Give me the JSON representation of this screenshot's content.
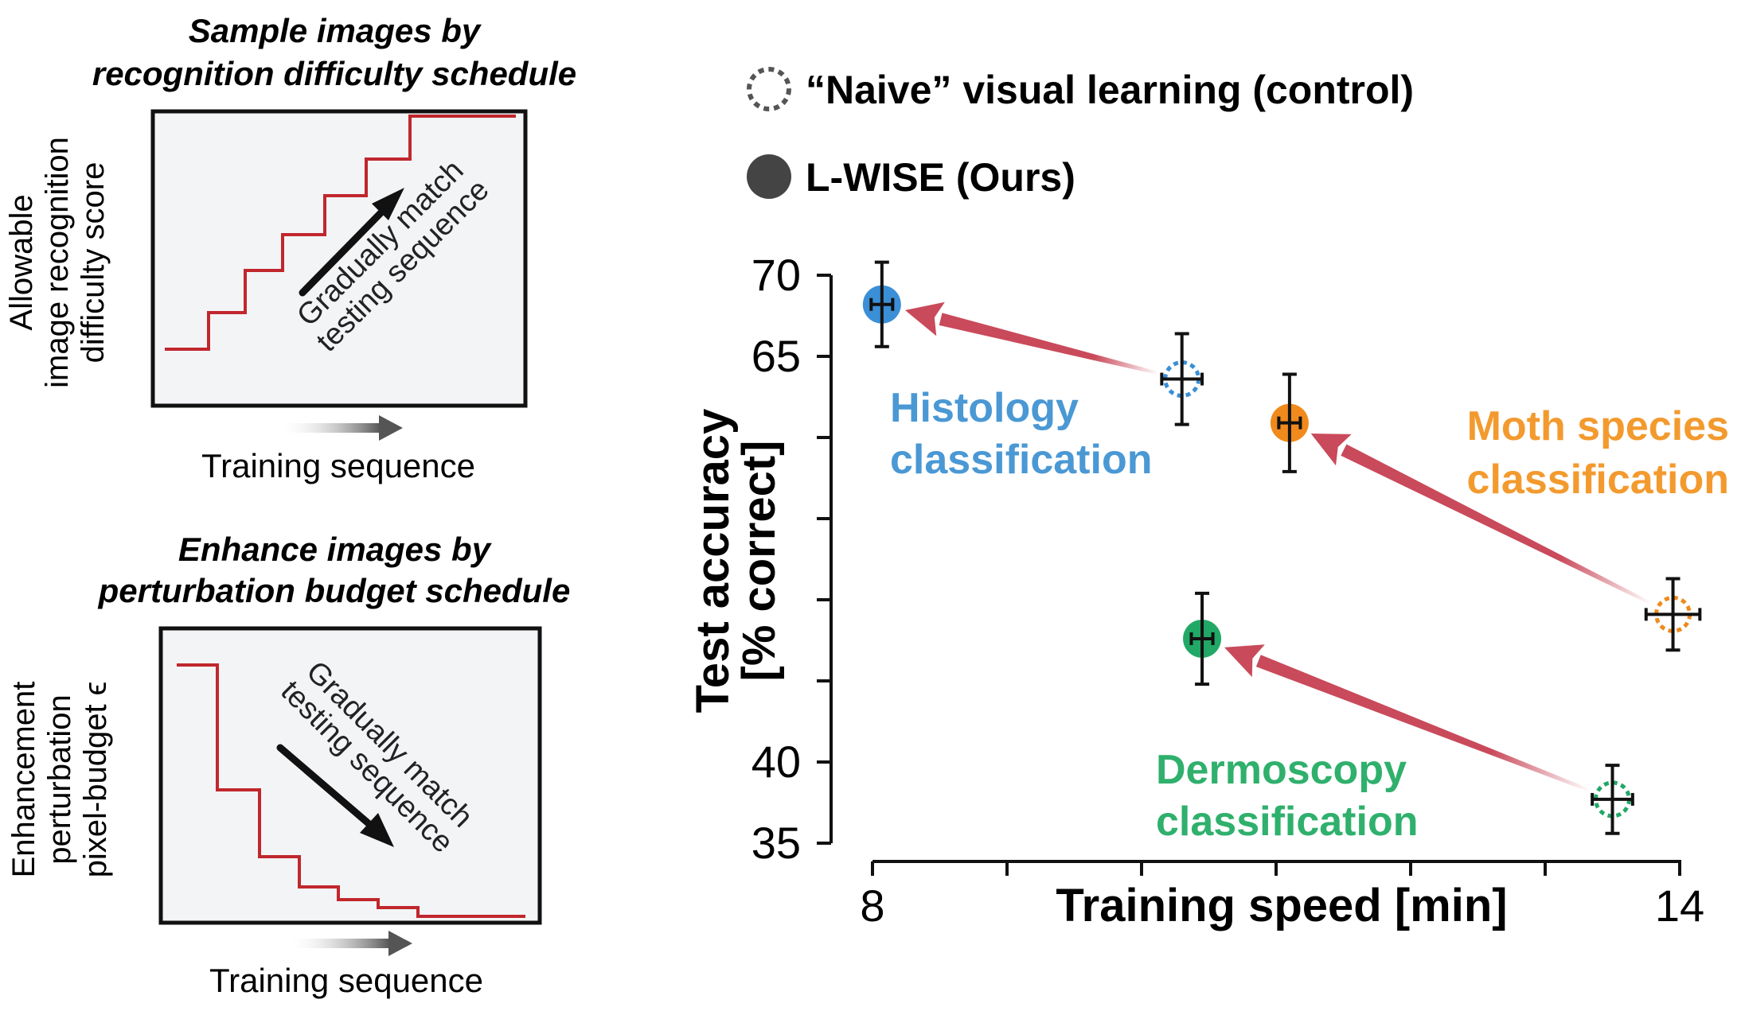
{
  "panel_a": {
    "title_line1": "Sample images by",
    "title_line2": "recognition difficulty schedule",
    "ylabel_line1": "Allowable",
    "ylabel_line2": "image recognition",
    "ylabel_line3": "difficulty score",
    "arrow_line1": "Gradually match",
    "arrow_line2": "testing sequence",
    "xlabel": "Training sequence"
  },
  "panel_b": {
    "title_line1": "Enhance images by",
    "title_line2": "perturbation budget schedule",
    "ylabel_line1": "Enhancement",
    "ylabel_line2": "perturbation",
    "ylabel_line3": "pixel-budget ϵ",
    "arrow_line1": "Gradually match",
    "arrow_line2": "testing sequence",
    "xlabel": "Training sequence"
  },
  "colors": {
    "step_line": "#c0272d",
    "box_fill": "#f3f4f6",
    "arrow": "#c94a5a",
    "histology": "#3a8fd6",
    "moth": "#f08a1c",
    "dermoscopy": "#22a866"
  },
  "chart_data": {
    "type": "scatter",
    "xlabel": "Training speed [min]",
    "ylabel_line1": "Test accuracy",
    "ylabel_line2": "[% correct]",
    "xlim": [
      8,
      14
    ],
    "ylim": [
      35,
      70
    ],
    "x_ticks": [
      8,
      9,
      10,
      11,
      12,
      13,
      14
    ],
    "x_tick_labels": [
      "8",
      "",
      "",
      "",
      "",
      "",
      "14"
    ],
    "y_ticks": [
      35,
      40,
      45,
      50,
      55,
      60,
      65,
      70
    ],
    "y_tick_labels": [
      "35",
      "40",
      "",
      "",
      "",
      "",
      "65",
      "70"
    ],
    "legend": {
      "placement": "top",
      "items": [
        {
          "label": "“Naive” visual learning (control)",
          "style": "dashed-circle"
        },
        {
          "label": "L-WISE (Ours)",
          "style": "filled-circle"
        }
      ]
    },
    "groups": [
      {
        "label_line1": "Histology",
        "label_line2": "classification",
        "color_key": "histology",
        "naive": {
          "x": 10.3,
          "y": 63.6,
          "xerr": 0.15,
          "yerr": 2.8
        },
        "lwise": {
          "x": 8.07,
          "y": 68.2,
          "xerr": 0.08,
          "yerr": 2.6
        }
      },
      {
        "label_line1": "Moth species",
        "label_line2": "classification",
        "color_key": "moth",
        "naive": {
          "x": 13.95,
          "y": 49.1,
          "xerr": 0.2,
          "yerr": 2.2
        },
        "lwise": {
          "x": 11.1,
          "y": 60.9,
          "xerr": 0.08,
          "yerr": 3.0
        }
      },
      {
        "label_line1": "Dermoscopy",
        "label_line2": "classification",
        "color_key": "dermoscopy",
        "naive": {
          "x": 13.5,
          "y": 37.7,
          "xerr": 0.15,
          "yerr": 2.1
        },
        "lwise": {
          "x": 10.45,
          "y": 47.6,
          "xerr": 0.08,
          "yerr": 2.8
        }
      }
    ]
  }
}
